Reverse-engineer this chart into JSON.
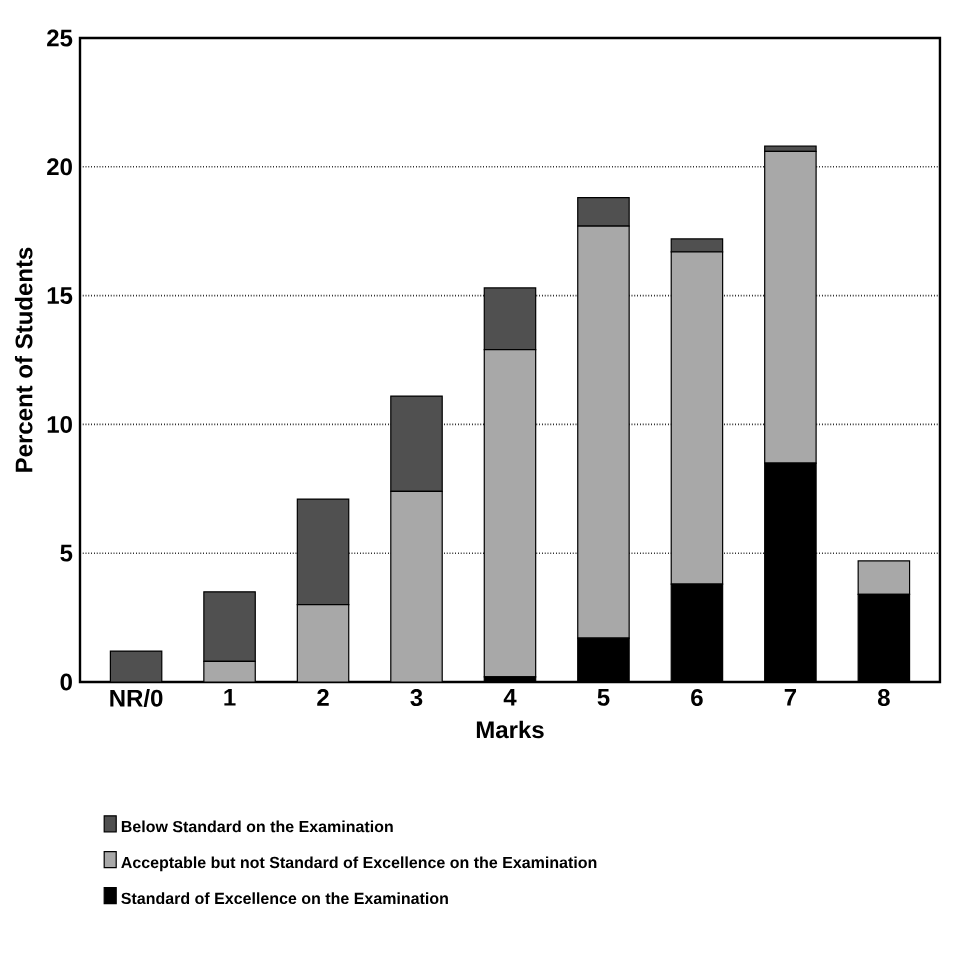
{
  "chart_data": {
    "type": "bar",
    "stacked": true,
    "xlabel": "Marks",
    "ylabel": "Percent of Students",
    "categories": [
      "NR/0",
      "1",
      "2",
      "3",
      "4",
      "5",
      "6",
      "7",
      "8"
    ],
    "series": [
      {
        "name": "Standard of Excellence on the Examination",
        "color": "#000000",
        "values": [
          0,
          0,
          0,
          0,
          0.2,
          1.7,
          3.8,
          8.5,
          3.4
        ]
      },
      {
        "name": "Acceptable but not Standard of Excellence on the Examination",
        "color": "#a8a8a8",
        "values": [
          0,
          0.8,
          3.0,
          7.4,
          12.7,
          16.0,
          12.9,
          12.1,
          1.3
        ]
      },
      {
        "name": "Below Standard on the Examination",
        "color": "#505050",
        "values": [
          1.2,
          2.7,
          4.1,
          3.7,
          2.4,
          1.1,
          0.5,
          0.2,
          0
        ]
      }
    ],
    "ylim": [
      0,
      25
    ],
    "yticks": [
      0,
      5,
      10,
      15,
      20,
      25
    ],
    "grid": "y",
    "legend": "bottom"
  }
}
